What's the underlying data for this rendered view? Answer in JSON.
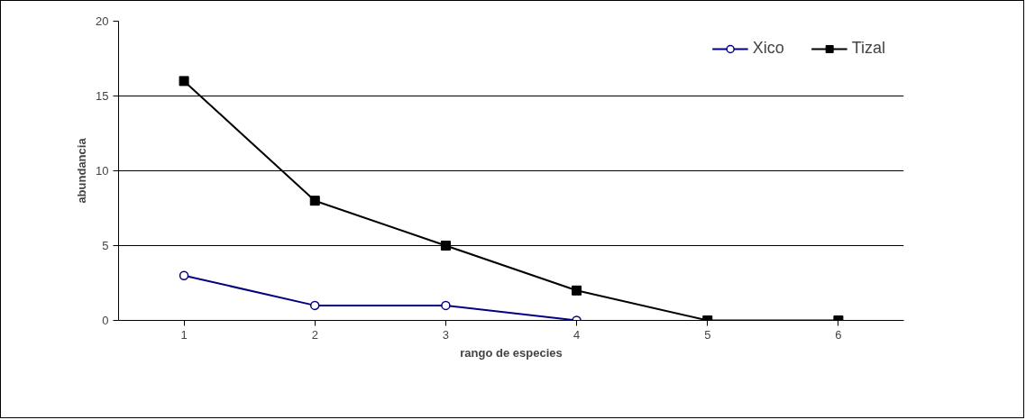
{
  "chart_data": {
    "type": "line",
    "xlabel": "rango de especies",
    "ylabel": "abundancia",
    "categories": [
      "1",
      "2",
      "3",
      "4",
      "5",
      "6"
    ],
    "series": [
      {
        "name": "Xico",
        "color": "#000080",
        "values": [
          3,
          1,
          1,
          0,
          null,
          null
        ],
        "marker": "circle"
      },
      {
        "name": "Tizal",
        "color": "#000000",
        "values": [
          16,
          8,
          5,
          2,
          0,
          0
        ],
        "marker": "square"
      }
    ],
    "ylim": [
      0,
      20
    ],
    "yticks": [
      0,
      5,
      10,
      15,
      20
    ],
    "grid": "y",
    "legend": "top right"
  }
}
